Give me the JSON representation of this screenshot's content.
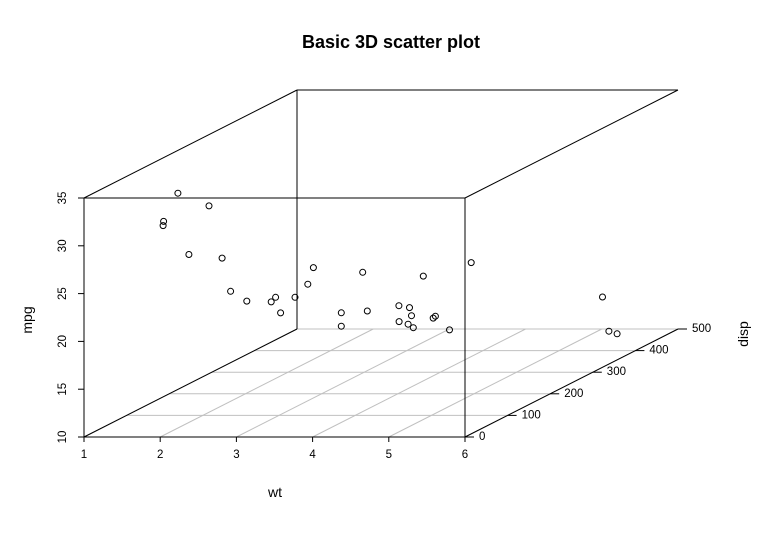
{
  "chart_data": {
    "type": "scatter",
    "title": "Basic 3D scatter plot",
    "xlabel": "wt",
    "ylabel": "disp",
    "zlabel": "mpg",
    "xlim": [
      1,
      6
    ],
    "ylim": [
      0,
      500
    ],
    "zlim": [
      10,
      35
    ],
    "x_ticks": [
      1,
      2,
      3,
      4,
      5,
      6
    ],
    "y_ticks": [
      0,
      100,
      200,
      300,
      400,
      500
    ],
    "z_ticks": [
      10,
      15,
      20,
      25,
      30,
      35
    ],
    "grid": true,
    "points": [
      {
        "x": 2.62,
        "y": 160.0,
        "z": 21.0
      },
      {
        "x": 2.875,
        "y": 160.0,
        "z": 21.0
      },
      {
        "x": 2.32,
        "y": 108.0,
        "z": 22.8
      },
      {
        "x": 3.215,
        "y": 258.0,
        "z": 21.4
      },
      {
        "x": 3.44,
        "y": 360.0,
        "z": 18.7
      },
      {
        "x": 3.46,
        "y": 225.0,
        "z": 18.1
      },
      {
        "x": 3.57,
        "y": 360.0,
        "z": 14.3
      },
      {
        "x": 3.19,
        "y": 146.7,
        "z": 24.4
      },
      {
        "x": 3.15,
        "y": 140.8,
        "z": 22.8
      },
      {
        "x": 3.44,
        "y": 167.6,
        "z": 19.2
      },
      {
        "x": 3.44,
        "y": 167.6,
        "z": 17.8
      },
      {
        "x": 4.07,
        "y": 275.8,
        "z": 16.4
      },
      {
        "x": 3.73,
        "y": 275.8,
        "z": 17.3
      },
      {
        "x": 3.78,
        "y": 275.8,
        "z": 15.2
      },
      {
        "x": 5.25,
        "y": 472.0,
        "z": 10.4
      },
      {
        "x": 5.424,
        "y": 460.0,
        "z": 10.4
      },
      {
        "x": 5.345,
        "y": 440.0,
        "z": 14.7
      },
      {
        "x": 2.2,
        "y": 78.7,
        "z": 32.4
      },
      {
        "x": 1.615,
        "y": 75.7,
        "z": 30.4
      },
      {
        "x": 1.835,
        "y": 71.1,
        "z": 33.9
      },
      {
        "x": 2.465,
        "y": 120.1,
        "z": 21.5
      },
      {
        "x": 3.52,
        "y": 318.0,
        "z": 15.5
      },
      {
        "x": 3.435,
        "y": 304.0,
        "z": 15.2
      },
      {
        "x": 3.84,
        "y": 350.0,
        "z": 13.3
      },
      {
        "x": 3.845,
        "y": 400.0,
        "z": 19.2
      },
      {
        "x": 1.935,
        "y": 79.0,
        "z": 27.3
      },
      {
        "x": 2.14,
        "y": 120.3,
        "z": 26.0
      },
      {
        "x": 1.513,
        "y": 95.1,
        "z": 30.4
      },
      {
        "x": 3.17,
        "y": 351.0,
        "z": 15.8
      },
      {
        "x": 2.77,
        "y": 145.0,
        "z": 19.7
      },
      {
        "x": 3.57,
        "y": 301.0,
        "z": 15.0
      },
      {
        "x": 2.78,
        "y": 121.0,
        "z": 21.4
      }
    ]
  }
}
